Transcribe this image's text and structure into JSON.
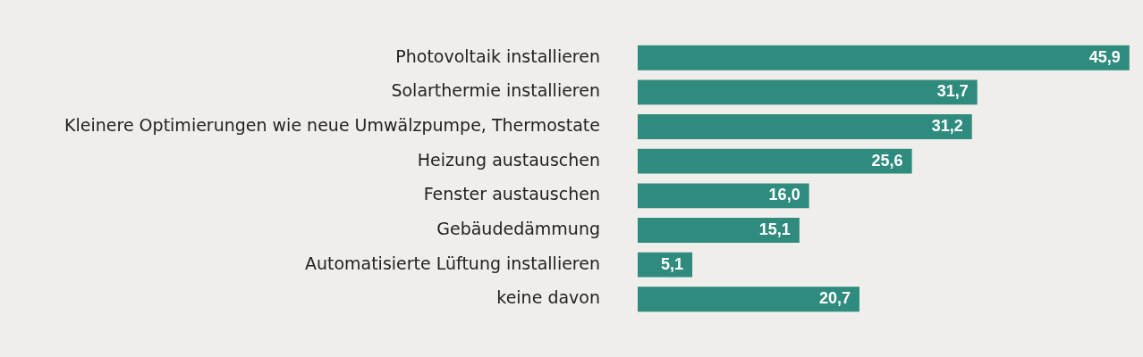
{
  "chart_data": {
    "type": "bar",
    "orientation": "horizontal",
    "categories": [
      "Photovoltaik installieren",
      "Solarthermie installieren",
      "Kleinere Optimierungen wie neue Umwälzpumpe, Thermostate",
      "Heizung austauschen",
      "Fenster austauschen",
      "Gebäudedämmung",
      "Automatisierte Lüftung installieren",
      "keine davon"
    ],
    "values": [
      45.9,
      31.7,
      31.2,
      25.6,
      16.0,
      15.1,
      5.1,
      20.7
    ],
    "value_labels": [
      "45,9",
      "31,7",
      "31,2",
      "25,6",
      "16,0",
      "15,1",
      "5,1",
      "20,7"
    ],
    "color": "#2e8b7e",
    "xlim": [
      0,
      46
    ],
    "tick_labels": "y",
    "legend": false
  }
}
